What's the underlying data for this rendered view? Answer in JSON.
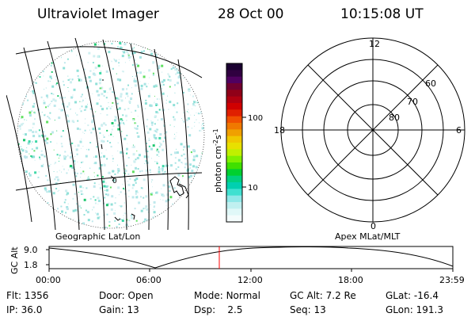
{
  "header": {
    "instrument": "Ultraviolet Imager",
    "date": "28 Oct 00",
    "time": "10:15:08 UT"
  },
  "colorbar": {
    "unit_label": "photon cm",
    "unit_sup_1": "-2",
    "unit_s": "s",
    "unit_sup_2": "-1",
    "ticks": [
      "100",
      "10"
    ],
    "colors": [
      "#1a0030",
      "#300040",
      "#500060",
      "#700030",
      "#900018",
      "#b00010",
      "#d00000",
      "#e02000",
      "#f05000",
      "#f07800",
      "#f0a000",
      "#f0c800",
      "#e8e000",
      "#c0f000",
      "#80f000",
      "#40e000",
      "#00d030",
      "#00d080",
      "#00d0b0",
      "#40e0d0",
      "#90e8e8",
      "#c0f0f0",
      "#e0f8f8",
      "#f4fcfc"
    ]
  },
  "geo_panel": {
    "caption": "Geographic Lat/Lon",
    "grid_label": "0"
  },
  "polar_panel": {
    "caption": "Apex MLat/MLT",
    "mlt_top": "12",
    "mlt_left": "18",
    "mlt_right": "6",
    "mlt_bottom": "0",
    "lat_60": "60",
    "lat_70": "70",
    "lat_80": "80"
  },
  "alt_plot": {
    "ylabel": "GC Alt",
    "y_ticks": [
      "9.0",
      "1.8"
    ],
    "x_ticks": [
      "00:00",
      "06:00",
      "12:00",
      "18:00",
      "23:59"
    ],
    "current_time_color": "#ff0000"
  },
  "status": {
    "flt_label": "Flt:",
    "flt_value": "1356",
    "door_label": "Door:",
    "door_value": "Open",
    "mode_label": "Mode:",
    "mode_value": "Normal",
    "gcalt_label": "GC Alt:",
    "gcalt_value": "7.2 Re",
    "glat_label": "GLat:",
    "glat_value": "-16.4",
    "ip_label": "IP:",
    "ip_value": "36.0",
    "gain_label": "Gain:",
    "gain_value": "13",
    "dsp_label": "Dsp:",
    "dsp_value": "2.5",
    "seq_label": "Seq:",
    "seq_value": "13",
    "glon_label": "GLon:",
    "glon_value": "191.3"
  }
}
